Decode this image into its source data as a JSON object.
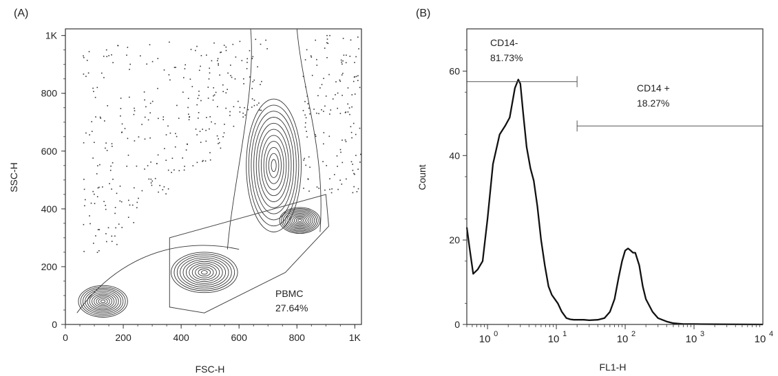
{
  "chart_data": [
    {
      "type": "scatter",
      "panel_label": "(A)",
      "xlabel": "FSC-H",
      "ylabel": "SSC-H",
      "xlim": [
        0,
        1023
      ],
      "ylim": [
        0,
        1023
      ],
      "x_ticks": [
        {
          "value": 0,
          "label": "0"
        },
        {
          "value": 200,
          "label": "200"
        },
        {
          "value": 400,
          "label": "400"
        },
        {
          "value": 600,
          "label": "600"
        },
        {
          "value": 800,
          "label": "800"
        },
        {
          "value": 1000,
          "label": "1K"
        }
      ],
      "y_ticks": [
        {
          "value": 0,
          "label": "0"
        },
        {
          "value": 200,
          "label": "200"
        },
        {
          "value": 400,
          "label": "400"
        },
        {
          "value": 600,
          "label": "600"
        },
        {
          "value": 800,
          "label": "800"
        },
        {
          "value": 1000,
          "label": "1K"
        }
      ],
      "gate": {
        "label": "PBMC",
        "percent": "27.64%",
        "polygon": [
          [
            360,
            60
          ],
          [
            360,
            300
          ],
          [
            900,
            450
          ],
          [
            910,
            340
          ],
          [
            760,
            180
          ],
          [
            480,
            40
          ]
        ]
      },
      "populations": [
        {
          "center": [
            130,
            80
          ],
          "spread": [
            85,
            55
          ]
        },
        {
          "center": [
            480,
            180
          ],
          "spread": [
            115,
            70
          ]
        },
        {
          "center": [
            720,
            550
          ],
          "spread": [
            95,
            230
          ]
        },
        {
          "center": [
            810,
            360
          ],
          "spread": [
            70,
            45
          ]
        }
      ]
    },
    {
      "type": "line",
      "panel_label": "(B)",
      "xlabel": "FL1-H",
      "ylabel": "Count",
      "x_scale": "log",
      "xlim": [
        0.5,
        10000
      ],
      "ylim": [
        0,
        70
      ],
      "x_ticks": [
        {
          "value": 1,
          "base": "10",
          "exp": "0"
        },
        {
          "value": 10,
          "base": "10",
          "exp": "1"
        },
        {
          "value": 100,
          "base": "10",
          "exp": "2"
        },
        {
          "value": 1000,
          "base": "10",
          "exp": "3"
        },
        {
          "value": 10000,
          "base": "10",
          "exp": "4"
        }
      ],
      "y_ticks": [
        0,
        20,
        40,
        60
      ],
      "x": [
        0.5,
        0.55,
        0.62,
        0.72,
        0.85,
        1.0,
        1.2,
        1.5,
        1.8,
        2.1,
        2.5,
        2.8,
        3.0,
        3.3,
        3.7,
        4.2,
        4.7,
        5.3,
        6.0,
        6.8,
        7.7,
        8.6,
        9.5,
        10.5,
        12.0,
        14,
        16,
        18,
        20,
        25,
        30,
        40,
        50,
        60,
        70,
        80,
        90,
        100,
        110,
        120,
        130,
        140,
        160,
        180,
        200,
        250,
        300,
        400,
        500,
        700,
        1000,
        2000,
        10000
      ],
      "y": [
        23,
        18,
        12,
        13,
        15,
        25,
        38,
        45,
        47,
        49,
        56,
        58,
        57,
        50,
        42,
        37,
        34,
        28,
        20,
        14,
        9,
        7,
        6,
        5,
        3,
        1.5,
        1.2,
        1.1,
        1.1,
        1.1,
        1.0,
        1.1,
        1.5,
        3,
        6,
        11,
        15,
        17.5,
        18,
        17.5,
        17,
        17,
        14,
        9,
        6,
        3,
        1.5,
        0.7,
        0.3,
        0.1,
        0.1,
        0.05,
        0
      ],
      "gates": [
        {
          "name": "CD14-",
          "percent": "81.73%",
          "range": [
            0.5,
            20
          ],
          "y_level": 57.5
        },
        {
          "name": "CD14 +",
          "percent": "18.27%",
          "range": [
            20,
            10000
          ],
          "y_level": 47
        }
      ]
    }
  ]
}
